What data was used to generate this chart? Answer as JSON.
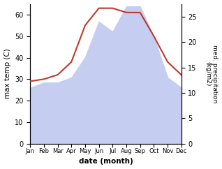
{
  "months": [
    "Jan",
    "Feb",
    "Mar",
    "Apr",
    "May",
    "Jun",
    "Jul",
    "Aug",
    "Sep",
    "Oct",
    "Nov",
    "Dec"
  ],
  "month_indices": [
    1,
    2,
    3,
    4,
    5,
    6,
    7,
    8,
    9,
    10,
    11,
    12
  ],
  "temperature": [
    29,
    30,
    32,
    38,
    55,
    63,
    63,
    61,
    61,
    50,
    38,
    32
  ],
  "precipitation": [
    11,
    12,
    12,
    13,
    17,
    24,
    22,
    27,
    27,
    21,
    13,
    11
  ],
  "temp_color": "#c0392b",
  "precip_fill_color": "#c5cdf0",
  "temp_ylim": [
    0,
    65
  ],
  "precip_ylim": [
    0,
    27.5
  ],
  "temp_yticks": [
    0,
    10,
    20,
    30,
    40,
    50,
    60
  ],
  "precip_yticks": [
    0,
    5,
    10,
    15,
    20,
    25
  ],
  "xlabel": "date (month)",
  "ylabel_left": "max temp (C)",
  "ylabel_right": "med. precipitation\n(kg/m2)",
  "figsize": [
    3.18,
    2.42
  ],
  "dpi": 100
}
